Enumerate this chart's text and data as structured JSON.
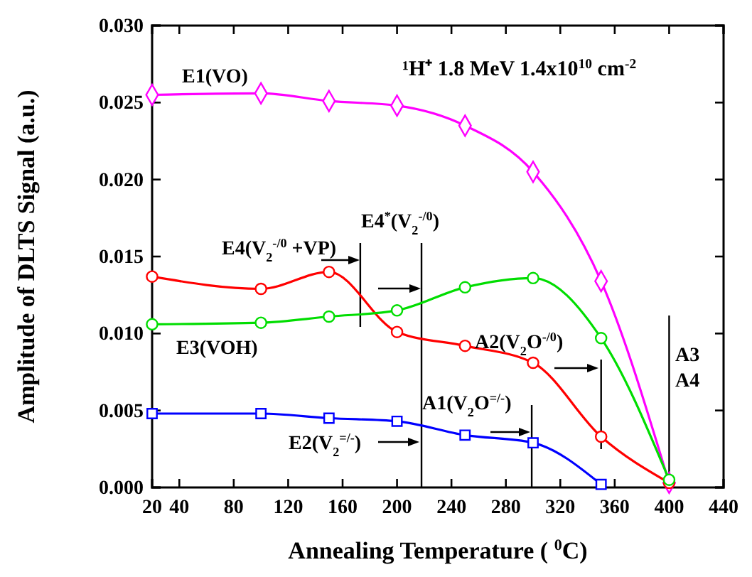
{
  "chart_data": {
    "type": "line",
    "xlabel": "Annealing Temperature ( $^{0}$C)",
    "ylabel": "Amplitude of DLTS Signal (a.u.)",
    "xlim": [
      20,
      440
    ],
    "xticks": [
      20,
      40,
      80,
      120,
      160,
      200,
      240,
      280,
      320,
      360,
      400,
      440
    ],
    "ylim": [
      0,
      0.03
    ],
    "yticks": [
      {
        "value": 0,
        "label": "0.000"
      },
      {
        "value": 0.005,
        "label": "0.005"
      },
      {
        "value": 0.01,
        "label": "0.010"
      },
      {
        "value": 0.015,
        "label": "0.015"
      },
      {
        "value": 0.02,
        "label": "0.020"
      },
      {
        "value": 0.025,
        "label": "0.025"
      },
      {
        "value": 0.03,
        "label": "0.030"
      }
    ],
    "x": [
      20,
      100,
      150,
      200,
      250,
      300,
      350,
      400
    ],
    "series": [
      {
        "name": "E1(VO)",
        "color": "#ff00ff",
        "marker": "diamond",
        "values": [
          0.0255,
          0.0256,
          0.0251,
          0.0248,
          0.0235,
          0.0205,
          0.0134,
          0.0003
        ]
      },
      {
        "color": "#ff0000",
        "marker": "circle",
        "values": [
          0.0137,
          0.0129,
          0.014,
          0.0101,
          0.0092,
          0.0081,
          0.0033,
          0.0003
        ]
      },
      {
        "name": "E3(VOH)",
        "color": "#00dd00",
        "marker": "circle",
        "values": [
          0.0106,
          0.0107,
          0.0111,
          0.0115,
          0.013,
          0.0136,
          0.0097,
          0.0005
        ]
      },
      {
        "color": "#0000ff",
        "marker": "square",
        "values": [
          0.0048,
          0.0048,
          0.0045,
          0.0043,
          0.0034,
          0.0029,
          0.0002,
          null
        ]
      }
    ],
    "ref_lines": [
      {
        "axis": "x",
        "value": 173
      },
      {
        "axis": "x",
        "value": 218
      },
      {
        "axis": "x",
        "value": 299
      },
      {
        "axis": "x",
        "value": 350
      },
      {
        "axis": "x",
        "value": 400
      }
    ],
    "annotations": [
      "¹H⁺ 1.8 MeV 1.4x10$^{10}$ cm$^{-2}$",
      "E4(V$_{2}$$^{-/0}$ +VP)",
      "E4$^{*}$(V$_{2}$$^{-/0}$)",
      "A2(V$_{2}$O$^{-/0}$)",
      "A1(V$_{2}$O$^{=/-}$)",
      "E2(V$_{2}$$^{=/-}$)",
      "A3",
      "A4"
    ]
  }
}
